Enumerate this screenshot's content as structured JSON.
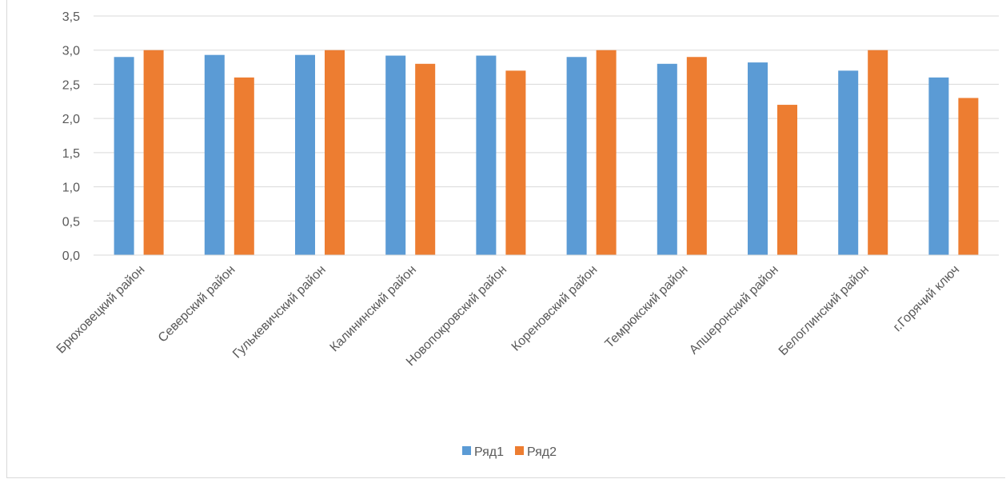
{
  "chart_data": {
    "type": "bar",
    "categories": [
      "Брюховецкий район",
      "Северский район",
      "Гулькевичский район",
      "Калининский район",
      "Новопокровский район",
      "Кореновский район",
      "Темрюкский район",
      "Апшеронский район",
      "Белоглинский район",
      "г.Горячий ключ"
    ],
    "series": [
      {
        "name": "Ряд1",
        "color": "#5b9bd5",
        "values": [
          2.9,
          2.93,
          2.93,
          2.92,
          2.92,
          2.9,
          2.8,
          2.82,
          2.7,
          2.6
        ]
      },
      {
        "name": "Ряд2",
        "color": "#ed7d31",
        "values": [
          3.0,
          2.6,
          3.0,
          2.8,
          2.7,
          3.0,
          2.9,
          2.2,
          3.0,
          2.3
        ]
      }
    ],
    "y_ticks": [
      "0,0",
      "0,5",
      "1,0",
      "1,5",
      "2,0",
      "2,5",
      "3,0",
      "3,5"
    ],
    "ylim": [
      0,
      3.5
    ],
    "grid": true,
    "legend_position": "bottom",
    "title": "",
    "xlabel": "",
    "ylabel": ""
  }
}
